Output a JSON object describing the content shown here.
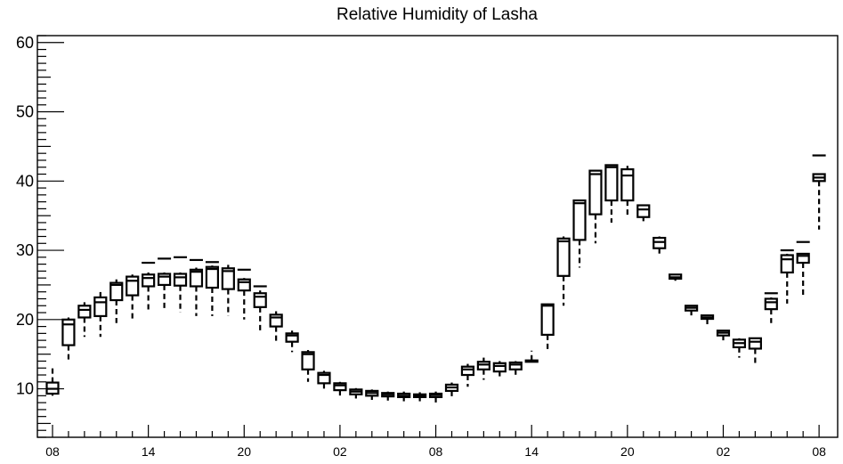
{
  "chart_data": {
    "type": "boxplot",
    "title": "Relative Humidity of Lasha",
    "xlabel": "",
    "ylabel": "",
    "ylim": [
      3,
      61
    ],
    "yticks": [
      10,
      20,
      30,
      40,
      50,
      60
    ],
    "xtick_labels": [
      "08",
      "14",
      "20",
      "02",
      "08",
      "14",
      "20",
      "02",
      "08"
    ],
    "xtick_positions": [
      0,
      6,
      12,
      18,
      24,
      30,
      36,
      42,
      48
    ],
    "grid": false,
    "boxes": [
      {
        "x": 0,
        "q1": 9.3,
        "q3": 10.9,
        "med": 10.0,
        "wlo": 9.0,
        "whi": 13.0,
        "out": null
      },
      {
        "x": 1,
        "q1": 16.3,
        "q3": 20.0,
        "med": 19.3,
        "wlo": 13.8,
        "whi": 20.3,
        "out": null
      },
      {
        "x": 2,
        "q1": 20.3,
        "q3": 22.0,
        "med": 21.4,
        "wlo": 17.5,
        "whi": 22.5,
        "out": null
      },
      {
        "x": 3,
        "q1": 20.5,
        "q3": 23.2,
        "med": 22.5,
        "wlo": 17.5,
        "whi": 24.0,
        "out": null
      },
      {
        "x": 4,
        "q1": 22.8,
        "q3": 25.3,
        "med": 25.0,
        "wlo": 19.5,
        "whi": 25.8,
        "out": null
      },
      {
        "x": 5,
        "q1": 23.5,
        "q3": 26.2,
        "med": 25.6,
        "wlo": 19.8,
        "whi": 26.5,
        "out": null
      },
      {
        "x": 6,
        "q1": 24.8,
        "q3": 26.5,
        "med": 26.0,
        "wlo": 21.3,
        "whi": 26.8,
        "out": 28.2
      },
      {
        "x": 7,
        "q1": 25.0,
        "q3": 26.6,
        "med": 26.2,
        "wlo": 21.3,
        "whi": 26.8,
        "out": 28.8
      },
      {
        "x": 8,
        "q1": 24.9,
        "q3": 26.6,
        "med": 26.1,
        "wlo": 21.0,
        "whi": 26.8,
        "out": 29.0
      },
      {
        "x": 9,
        "q1": 24.8,
        "q3": 27.2,
        "med": 26.9,
        "wlo": 20.5,
        "whi": 27.5,
        "out": 28.6
      },
      {
        "x": 10,
        "q1": 24.6,
        "q3": 27.6,
        "med": 27.3,
        "wlo": 20.5,
        "whi": 27.8,
        "out": 28.3
      },
      {
        "x": 11,
        "q1": 24.4,
        "q3": 27.4,
        "med": 27.0,
        "wlo": 20.5,
        "whi": 27.9,
        "out": null
      },
      {
        "x": 12,
        "q1": 24.2,
        "q3": 25.8,
        "med": 25.4,
        "wlo": 20.0,
        "whi": 26.0,
        "out": 27.2
      },
      {
        "x": 13,
        "q1": 21.8,
        "q3": 23.8,
        "med": 23.3,
        "wlo": 18.3,
        "whi": 24.2,
        "out": 24.8
      },
      {
        "x": 14,
        "q1": 19.0,
        "q3": 20.7,
        "med": 20.3,
        "wlo": 16.8,
        "whi": 21.2,
        "out": null
      },
      {
        "x": 15,
        "q1": 16.8,
        "q3": 18.0,
        "med": 17.7,
        "wlo": 15.3,
        "whi": 18.4,
        "out": null
      },
      {
        "x": 16,
        "q1": 12.8,
        "q3": 15.3,
        "med": 15.0,
        "wlo": 11.0,
        "whi": 15.6,
        "out": null
      },
      {
        "x": 17,
        "q1": 10.8,
        "q3": 12.3,
        "med": 12.0,
        "wlo": 9.8,
        "whi": 12.6,
        "out": null
      },
      {
        "x": 18,
        "q1": 9.8,
        "q3": 10.8,
        "med": 10.5,
        "wlo": 9.0,
        "whi": 11.0,
        "out": null
      },
      {
        "x": 19,
        "q1": 9.2,
        "q3": 9.9,
        "med": 9.6,
        "wlo": 8.6,
        "whi": 10.1,
        "out": null
      },
      {
        "x": 20,
        "q1": 9.0,
        "q3": 9.7,
        "med": 9.4,
        "wlo": 8.4,
        "whi": 9.9,
        "out": null
      },
      {
        "x": 21,
        "q1": 8.9,
        "q3": 9.4,
        "med": 9.2,
        "wlo": 8.3,
        "whi": 9.6,
        "out": null
      },
      {
        "x": 22,
        "q1": 8.8,
        "q3": 9.3,
        "med": 9.0,
        "wlo": 8.2,
        "whi": 9.6,
        "out": null
      },
      {
        "x": 23,
        "q1": 8.8,
        "q3": 9.2,
        "med": 9.0,
        "wlo": 8.2,
        "whi": 9.5,
        "out": null
      },
      {
        "x": 24,
        "q1": 8.8,
        "q3": 9.3,
        "med": 9.1,
        "wlo": 8.0,
        "whi": 9.6,
        "out": null
      },
      {
        "x": 25,
        "q1": 9.7,
        "q3": 10.6,
        "med": 10.2,
        "wlo": 8.6,
        "whi": 10.9,
        "out": null
      },
      {
        "x": 26,
        "q1": 12.0,
        "q3": 13.2,
        "med": 12.8,
        "wlo": 10.3,
        "whi": 13.6,
        "out": null
      },
      {
        "x": 27,
        "q1": 12.8,
        "q3": 13.9,
        "med": 13.5,
        "wlo": 11.3,
        "whi": 14.5,
        "out": null
      },
      {
        "x": 28,
        "q1": 12.5,
        "q3": 13.7,
        "med": 13.3,
        "wlo": 11.8,
        "whi": 14.0,
        "out": null
      },
      {
        "x": 29,
        "q1": 12.8,
        "q3": 13.8,
        "med": 13.5,
        "wlo": 12.0,
        "whi": 14.0,
        "out": null
      },
      {
        "x": 30,
        "q1": 13.9,
        "q3": 14.1,
        "med": 14.0,
        "wlo": 14.0,
        "whi": 15.5,
        "out": null
      },
      {
        "x": 31,
        "q1": 17.8,
        "q3": 22.2,
        "med": 22.0,
        "wlo": 15.3,
        "whi": 22.3,
        "out": null
      },
      {
        "x": 32,
        "q1": 26.3,
        "q3": 31.7,
        "med": 31.3,
        "wlo": 22.0,
        "whi": 32.0,
        "out": null
      },
      {
        "x": 33,
        "q1": 31.5,
        "q3": 37.2,
        "med": 36.8,
        "wlo": 27.5,
        "whi": 37.3,
        "out": null
      },
      {
        "x": 34,
        "q1": 35.2,
        "q3": 41.5,
        "med": 41.0,
        "wlo": 31.0,
        "whi": 41.6,
        "out": null
      },
      {
        "x": 35,
        "q1": 37.2,
        "q3": 42.3,
        "med": 42.0,
        "wlo": 34.0,
        "whi": 42.4,
        "out": null
      },
      {
        "x": 36,
        "q1": 37.2,
        "q3": 41.7,
        "med": 40.8,
        "wlo": 34.8,
        "whi": 42.2,
        "out": null
      },
      {
        "x": 37,
        "q1": 34.8,
        "q3": 36.5,
        "med": 35.9,
        "wlo": 34.2,
        "whi": 36.6,
        "out": null
      },
      {
        "x": 38,
        "q1": 30.3,
        "q3": 31.8,
        "med": 31.2,
        "wlo": 29.5,
        "whi": 32.0,
        "out": null
      },
      {
        "x": 39,
        "q1": 25.9,
        "q3": 26.5,
        "med": 26.1,
        "wlo": 25.6,
        "whi": 26.6,
        "out": null
      },
      {
        "x": 40,
        "q1": 21.3,
        "q3": 22.0,
        "med": 21.7,
        "wlo": 20.6,
        "whi": 22.1,
        "out": null
      },
      {
        "x": 41,
        "q1": 20.1,
        "q3": 20.6,
        "med": 20.3,
        "wlo": 19.0,
        "whi": 20.7,
        "out": null
      },
      {
        "x": 42,
        "q1": 17.7,
        "q3": 18.4,
        "med": 18.1,
        "wlo": 17.0,
        "whi": 18.5,
        "out": null
      },
      {
        "x": 43,
        "q1": 16.0,
        "q3": 17.1,
        "med": 16.6,
        "wlo": 14.5,
        "whi": 17.3,
        "out": null
      },
      {
        "x": 44,
        "q1": 15.8,
        "q3": 17.3,
        "med": 16.8,
        "wlo": 13.3,
        "whi": 17.4,
        "out": null
      },
      {
        "x": 45,
        "q1": 21.5,
        "q3": 23.0,
        "med": 22.5,
        "wlo": 19.5,
        "whi": 23.2,
        "out": 23.8
      },
      {
        "x": 46,
        "q1": 26.8,
        "q3": 29.3,
        "med": 28.7,
        "wlo": 22.3,
        "whi": 29.5,
        "out": 30.0
      },
      {
        "x": 47,
        "q1": 28.2,
        "q3": 29.5,
        "med": 29.2,
        "wlo": 23.5,
        "whi": 29.6,
        "out": 31.2
      },
      {
        "x": 48,
        "q1": 40.0,
        "q3": 41.0,
        "med": 40.5,
        "wlo": 33.0,
        "whi": 41.0,
        "out": 43.7
      }
    ]
  }
}
